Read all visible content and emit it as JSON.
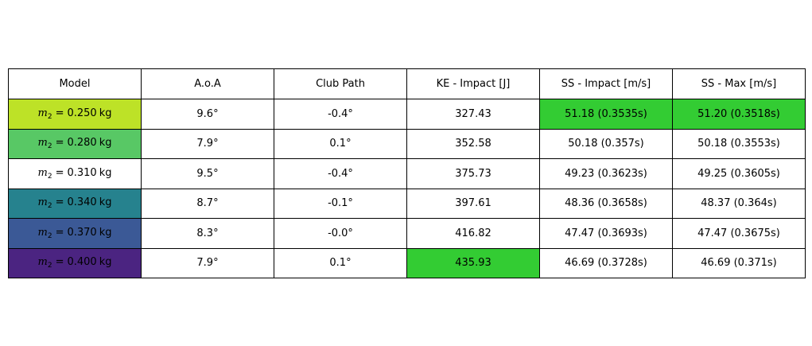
{
  "chart_data": {
    "type": "table",
    "headers": [
      "Model",
      "A.o.A",
      "Club Path",
      "KE - Impact [J]",
      "SS - Impact [m/s]",
      "SS - Max [m/s]"
    ],
    "rows": [
      {
        "model": {
          "symbol": "m",
          "subscript": "2",
          "eq": "=",
          "value": "0.250",
          "unit": "kg",
          "color": "#bde227"
        },
        "aoa": "9.6°",
        "club_path": "-0.4°",
        "ke_impact": "327.43",
        "ss_impact": "51.18 (0.3535s)",
        "ss_max": "51.20 (0.3518s)",
        "highlights": {
          "ke_impact": null,
          "ss_impact": "#33cc33",
          "ss_max": "#33cc33"
        }
      },
      {
        "model": {
          "symbol": "m",
          "subscript": "2",
          "eq": "=",
          "value": "0.280",
          "unit": "kg",
          "color": "#58c865"
        },
        "aoa": "7.9°",
        "club_path": "0.1°",
        "ke_impact": "352.58",
        "ss_impact": "50.18 (0.357s)",
        "ss_max": "50.18 (0.3553s)",
        "highlights": {
          "ke_impact": null,
          "ss_impact": null,
          "ss_max": null
        }
      },
      {
        "model": {
          "symbol": "m",
          "subscript": "2",
          "eq": "=",
          "value": "0.310",
          "unit": "kg",
          "color": "#ffffff"
        },
        "aoa": "9.5°",
        "club_path": "-0.4°",
        "ke_impact": "375.73",
        "ss_impact": "49.23 (0.3623s)",
        "ss_max": "49.25 (0.3605s)",
        "highlights": {
          "ke_impact": null,
          "ss_impact": null,
          "ss_max": null
        }
      },
      {
        "model": {
          "symbol": "m",
          "subscript": "2",
          "eq": "=",
          "value": "0.340",
          "unit": "kg",
          "color": "#26828e"
        },
        "aoa": "8.7°",
        "club_path": "-0.1°",
        "ke_impact": "397.61",
        "ss_impact": "48.36 (0.3658s)",
        "ss_max": "48.37 (0.364s)",
        "highlights": {
          "ke_impact": null,
          "ss_impact": null,
          "ss_max": null
        }
      },
      {
        "model": {
          "symbol": "m",
          "subscript": "2",
          "eq": "=",
          "value": "0.370",
          "unit": "kg",
          "color": "#3b5996"
        },
        "aoa": "8.3°",
        "club_path": "-0.0°",
        "ke_impact": "416.82",
        "ss_impact": "47.47 (0.3693s)",
        "ss_max": "47.47 (0.3675s)",
        "highlights": {
          "ke_impact": null,
          "ss_impact": null,
          "ss_max": null
        }
      },
      {
        "model": {
          "symbol": "m",
          "subscript": "2",
          "eq": "=",
          "value": "0.400",
          "unit": "kg",
          "color": "#4b2481"
        },
        "aoa": "7.9°",
        "club_path": "0.1°",
        "ke_impact": "435.93",
        "ss_impact": "46.69 (0.3728s)",
        "ss_max": "46.69 (0.371s)",
        "highlights": {
          "ke_impact": "#33cc33",
          "ss_impact": null,
          "ss_max": null
        }
      }
    ]
  }
}
